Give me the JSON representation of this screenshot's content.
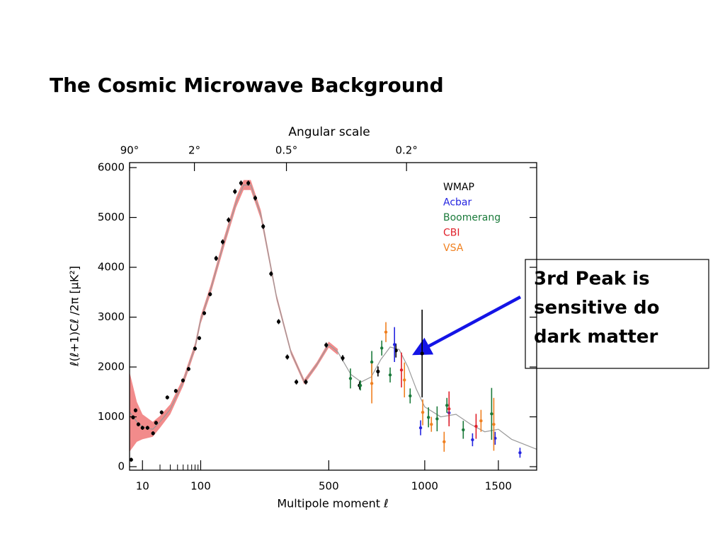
{
  "title": "The Cosmic Microwave Background",
  "callout": {
    "lines": [
      "3rd Peak is",
      "sensitive do",
      "dark matter"
    ]
  },
  "chart_data": {
    "type": "scatter",
    "xlabel": "Multipole moment ℓ",
    "ylabel": "ℓ(ℓ+1)Cℓ /2π [μK²]",
    "top_axis_label": "Angular scale",
    "xlim": [
      6,
      1800
    ],
    "ylim": [
      -70,
      6100
    ],
    "xticks": [
      10,
      100,
      500,
      1000,
      1500
    ],
    "xminorticks": [
      20,
      30,
      40,
      50,
      60,
      70,
      80,
      90
    ],
    "yticks": [
      0,
      1000,
      2000,
      3000,
      4000,
      5000,
      6000
    ],
    "top_ticks": [
      {
        "value": 6,
        "label": "90°"
      },
      {
        "value": 78,
        "label": "2°"
      },
      {
        "value": 334,
        "label": "0.5°"
      },
      {
        "value": 892,
        "label": "0.2°"
      }
    ],
    "legend": "upper right",
    "curve": {
      "line_color": "#9a9a9a",
      "band_color": "#f28b8b",
      "x": [
        6,
        8,
        10,
        15,
        20,
        30,
        50,
        80,
        100,
        120,
        150,
        180,
        200,
        220,
        250,
        300,
        350,
        400,
        450,
        500,
        540,
        600,
        650,
        700,
        750,
        800,
        850,
        900,
        950,
        1000,
        1100,
        1200,
        1300,
        1400,
        1500,
        1600,
        1800
      ],
      "values": [
        1100,
        900,
        800,
        750,
        900,
        1150,
        1700,
        2400,
        2950,
        3550,
        4500,
        5300,
        5650,
        5650,
        5050,
        3400,
        2300,
        1700,
        2050,
        2450,
        2300,
        1850,
        1700,
        1800,
        2150,
        2400,
        2350,
        2000,
        1550,
        1200,
        1000,
        1050,
        850,
        700,
        750,
        550,
        350
      ],
      "band": [
        800,
        400,
        250,
        150,
        120,
        100,
        80,
        80,
        80,
        90,
        100,
        100,
        100,
        100,
        90,
        60,
        50,
        50,
        50,
        60,
        60,
        null,
        null,
        null,
        null,
        null,
        null,
        null,
        null,
        null,
        null,
        null,
        null,
        null,
        null,
        null,
        null
      ]
    },
    "series": [
      {
        "name": "WMAP",
        "color": "#000000",
        "x": [
          6.4,
          6.9,
          7.6,
          8.5,
          10,
          12.2,
          15.2,
          17.1,
          21.3,
          26.7,
          37.4,
          49.6,
          62,
          79.8,
          94.6,
          107,
          119,
          132,
          147,
          161,
          177,
          193,
          213,
          233,
          257,
          282,
          307,
          337,
          370,
          406,
          489,
          562,
          642,
          735,
          832,
          984
        ],
        "values": [
          140,
          990,
          1130,
          850,
          780,
          780,
          670,
          880,
          1090,
          1390,
          1520,
          1730,
          1960,
          2370,
          2580,
          3080,
          3460,
          4180,
          4510,
          4950,
          5520,
          5690,
          5690,
          5390,
          4820,
          3870,
          2910,
          2200,
          1700,
          1700,
          2440,
          2180,
          1630,
          1910,
          2330,
          2270
        ],
        "errors": [
          40,
          40,
          40,
          40,
          40,
          40,
          40,
          40,
          40,
          40,
          40,
          40,
          40,
          40,
          40,
          40,
          40,
          50,
          50,
          50,
          50,
          50,
          50,
          50,
          50,
          50,
          50,
          50,
          50,
          50,
          50,
          60,
          80,
          100,
          140,
          880
        ]
      },
      {
        "name": "Acbar",
        "color": "#2424e0",
        "x": [
          824,
          975,
          1154,
          1313,
          1476,
          1666
        ],
        "values": [
          2450,
          780,
          1080,
          540,
          570,
          280
        ],
        "errors": [
          350,
          150,
          200,
          130,
          130,
          100
        ]
      },
      {
        "name": "Boomerang",
        "color": "#1a7a3a",
        "x": [
          598,
          646,
          703,
          755,
          800,
          913,
          1023,
          1077,
          1140,
          1249,
          1450
        ],
        "values": [
          1770,
          1630,
          2100,
          2380,
          1840,
          1420,
          990,
          960,
          1230,
          740,
          1060
        ],
        "errors": [
          200,
          100,
          220,
          150,
          150,
          150,
          200,
          250,
          150,
          180,
          520
        ]
      },
      {
        "name": "CBI",
        "color": "#e0202a",
        "x": [
          863,
          1154,
          1338
        ],
        "values": [
          1940,
          1160,
          810
        ],
        "errors": [
          350,
          350,
          250
        ]
      },
      {
        "name": "VSA",
        "color": "#f08020",
        "x": [
          703,
          777,
          880,
          988,
          1041,
          1122,
          1373,
          1466
        ],
        "values": [
          1670,
          2700,
          1740,
          1090,
          850,
          500,
          920,
          850
        ],
        "errors": [
          400,
          200,
          350,
          260,
          150,
          200,
          220,
          530
        ]
      }
    ]
  }
}
